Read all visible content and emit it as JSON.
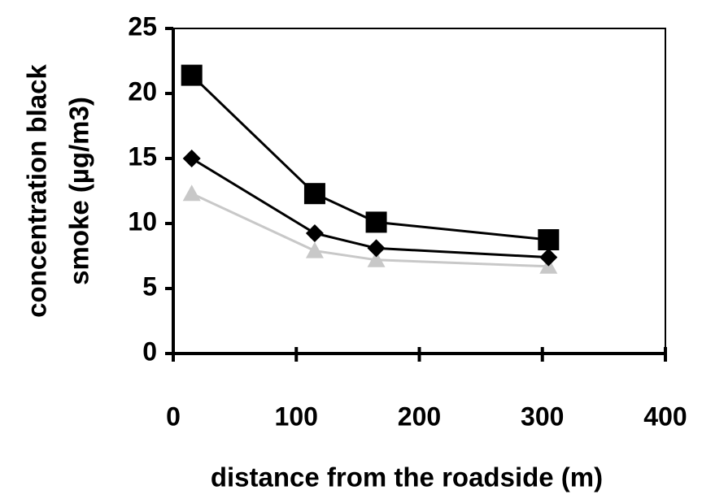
{
  "chart_data": {
    "type": "line",
    "xlabel": "distance from the roadside (m)",
    "ylabel": [
      "concentration black",
      "smoke (µg/m3)"
    ],
    "x": [
      15,
      115,
      165,
      305
    ],
    "series": [
      {
        "color": "#000000",
        "marker": "square",
        "values": [
          21.4,
          12.3,
          10.1,
          8.75
        ]
      },
      {
        "color": "#000000",
        "marker": "diamond",
        "values": [
          15,
          9.25,
          8.1,
          7.4
        ]
      },
      {
        "color": "#c8c8c8",
        "marker": "triangle",
        "values": [
          12.3,
          7.9,
          7.2,
          6.7
        ]
      }
    ],
    "xlim": [
      0,
      400
    ],
    "xticks": [
      0,
      100,
      200,
      300,
      400
    ],
    "ylim": [
      0,
      25
    ],
    "yticks": [
      0,
      5,
      10,
      15,
      20,
      25
    ]
  }
}
